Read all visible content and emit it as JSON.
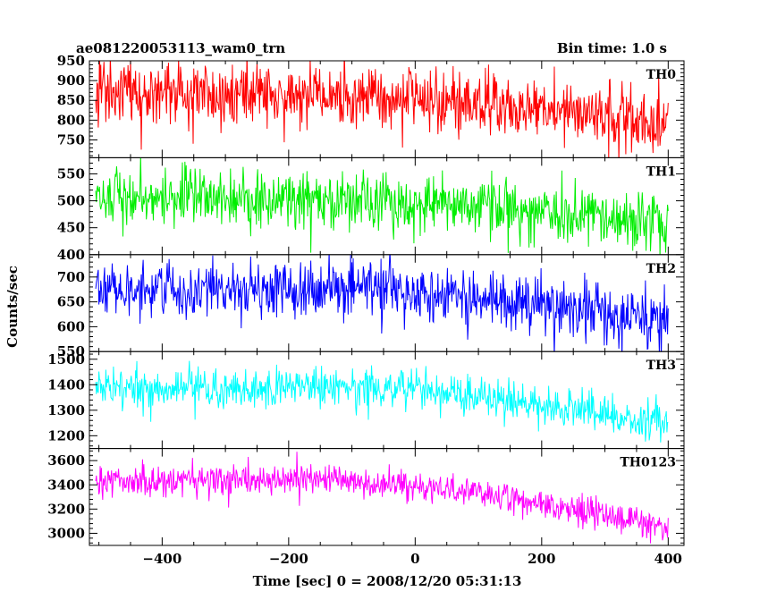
{
  "header": {
    "title": "ae081220053113_wam0_trn",
    "bin_time": "Bin time: 1.0 s"
  },
  "chart_data": {
    "type": "line",
    "xlabel": "Time [sec] 0 = 2008/12/20 05:31:13",
    "ylabel": "Counts/sec",
    "xlim": [
      -515,
      425
    ],
    "xticks": [
      -400,
      -200,
      0,
      200,
      400
    ],
    "x_range_data": [
      -505,
      400
    ],
    "bin_time_s": 1.0,
    "panels": [
      {
        "name": "TH0",
        "color": "#ff0000",
        "ylim": [
          705,
          950
        ],
        "yticks": [
          750,
          800,
          850,
          900,
          950
        ],
        "trend": [
          [
            -505,
            880
          ],
          [
            -300,
            865
          ],
          [
            -100,
            858
          ],
          [
            0,
            852
          ],
          [
            100,
            845
          ],
          [
            200,
            830
          ],
          [
            300,
            815
          ],
          [
            400,
            790
          ]
        ],
        "noise_sd": 40
      },
      {
        "name": "TH1",
        "color": "#00ee00",
        "ylim": [
          400,
          580
        ],
        "yticks": [
          400,
          450,
          500,
          550
        ],
        "trend": [
          [
            -505,
            505
          ],
          [
            -300,
            505
          ],
          [
            -100,
            500
          ],
          [
            0,
            495
          ],
          [
            100,
            490
          ],
          [
            200,
            478
          ],
          [
            300,
            470
          ],
          [
            400,
            460
          ]
        ],
        "noise_sd": 27
      },
      {
        "name": "TH2",
        "color": "#0000ff",
        "ylim": [
          550,
          745
        ],
        "yticks": [
          550,
          600,
          650,
          700
        ],
        "trend": [
          [
            -505,
            672
          ],
          [
            -300,
            678
          ],
          [
            -100,
            675
          ],
          [
            0,
            670
          ],
          [
            100,
            660
          ],
          [
            200,
            642
          ],
          [
            300,
            628
          ],
          [
            400,
            612
          ]
        ],
        "noise_sd": 30
      },
      {
        "name": "TH3",
        "color": "#00ffff",
        "ylim": [
          1150,
          1530
        ],
        "yticks": [
          1200,
          1300,
          1400,
          1500
        ],
        "trend": [
          [
            -505,
            1385
          ],
          [
            -300,
            1385
          ],
          [
            -200,
            1395
          ],
          [
            0,
            1375
          ],
          [
            100,
            1355
          ],
          [
            200,
            1315
          ],
          [
            300,
            1285
          ],
          [
            400,
            1240
          ]
        ],
        "noise_sd": 38
      },
      {
        "name": "TH0123",
        "color": "#ff00ff",
        "ylim": [
          2900,
          3700
        ],
        "yticks": [
          3000,
          3200,
          3400,
          3600
        ],
        "trend": [
          [
            -505,
            3420
          ],
          [
            -300,
            3430
          ],
          [
            -200,
            3440
          ],
          [
            0,
            3390
          ],
          [
            100,
            3350
          ],
          [
            200,
            3240
          ],
          [
            300,
            3160
          ],
          [
            400,
            3060
          ]
        ],
        "noise_sd": 65
      }
    ]
  }
}
